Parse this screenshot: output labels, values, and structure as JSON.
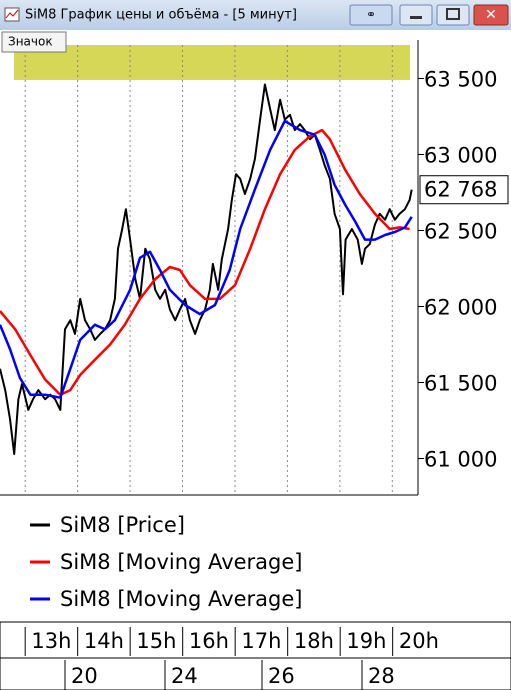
{
  "window": {
    "title": "SiM8 График цены и объёма - [5 минут]",
    "tooltip": "Значок"
  },
  "chart_data": {
    "type": "line",
    "xlim": [
      -0.48,
      7.49
    ],
    "xgrid": [
      0,
      1,
      2,
      3,
      4,
      5,
      6,
      7
    ],
    "ylim": [
      60760,
      63720
    ],
    "yticks": [
      {
        "value": 61000,
        "label": "61 000"
      },
      {
        "value": 61500,
        "label": "61 500"
      },
      {
        "value": 62000,
        "label": "62 000"
      },
      {
        "value": 62500,
        "label": "62 500"
      },
      {
        "value": 63000,
        "label": "63 000"
      },
      {
        "value": 63500,
        "label": "63 500"
      }
    ],
    "last_price": {
      "value": 62768,
      "label": "62 768"
    },
    "highlight": {
      "from": 63490,
      "to": 63720,
      "color": "#cfcf3a"
    },
    "series": [
      {
        "name": "SiM8 [Price]",
        "color": "#000000",
        "x": [
          -0.48,
          -0.38,
          -0.29,
          -0.21,
          -0.13,
          -0.06,
          0.06,
          0.15,
          0.25,
          0.38,
          0.48,
          0.57,
          0.67,
          0.76,
          0.86,
          0.95,
          1.05,
          1.14,
          1.24,
          1.33,
          1.43,
          1.52,
          1.62,
          1.71,
          1.77,
          1.85,
          1.92,
          2.0,
          2.1,
          2.19,
          2.29,
          2.38,
          2.48,
          2.57,
          2.67,
          2.76,
          2.86,
          2.95,
          3.05,
          3.14,
          3.24,
          3.33,
          3.43,
          3.52,
          3.58,
          3.68,
          3.75,
          3.87,
          3.94,
          4.02,
          4.1,
          4.19,
          4.29,
          4.38,
          4.48,
          4.57,
          4.67,
          4.76,
          4.86,
          4.95,
          5.05,
          5.14,
          5.24,
          5.33,
          5.43,
          5.52,
          5.62,
          5.71,
          5.81,
          5.9,
          6.0,
          6.06,
          6.11,
          6.23,
          6.34,
          6.42,
          6.48,
          6.57,
          6.67,
          6.76,
          6.86,
          6.95,
          7.05,
          7.14,
          7.24,
          7.33,
          7.37
        ],
        "values": [
          61590,
          61450,
          61260,
          61030,
          61390,
          61490,
          61320,
          61390,
          61450,
          61390,
          61420,
          61390,
          61320,
          61850,
          61910,
          61820,
          62050,
          61910,
          61850,
          61780,
          61820,
          61850,
          61910,
          62050,
          62380,
          62510,
          62640,
          62440,
          62180,
          62050,
          62380,
          62310,
          62110,
          62050,
          62110,
          61980,
          61910,
          61980,
          62050,
          61910,
          61820,
          61910,
          61980,
          62110,
          62280,
          62110,
          62310,
          62510,
          62700,
          62870,
          62840,
          62740,
          62840,
          62970,
          63230,
          63460,
          63300,
          63160,
          63360,
          63230,
          63260,
          63160,
          63200,
          63160,
          63100,
          63130,
          63030,
          62930,
          62840,
          62610,
          62510,
          62080,
          62440,
          62510,
          62440,
          62280,
          62380,
          62410,
          62540,
          62610,
          62570,
          62640,
          62570,
          62610,
          62640,
          62700,
          62768
        ]
      },
      {
        "name": "SiM8 [Moving Average]",
        "color": "#ff0000",
        "x": [
          -0.48,
          -0.19,
          0.1,
          0.38,
          0.67,
          0.86,
          1.05,
          1.33,
          1.62,
          1.9,
          2.19,
          2.48,
          2.76,
          2.95,
          3.14,
          3.43,
          3.71,
          4.0,
          4.29,
          4.57,
          4.86,
          5.14,
          5.43,
          5.66,
          5.81,
          6.1,
          6.38,
          6.67,
          6.95,
          7.14,
          7.33
        ],
        "values": [
          61970,
          61850,
          61680,
          61520,
          61420,
          61450,
          61550,
          61650,
          61750,
          61880,
          62050,
          62180,
          62260,
          62240,
          62140,
          62050,
          62050,
          62140,
          62380,
          62640,
          62870,
          63030,
          63120,
          63160,
          63100,
          62900,
          62740,
          62610,
          62510,
          62520,
          62510
        ]
      },
      {
        "name": "SiM8 [Moving Average]",
        "color": "#0000ff",
        "x": [
          -0.48,
          -0.29,
          -0.1,
          0.1,
          0.38,
          0.67,
          0.86,
          1.05,
          1.33,
          1.52,
          1.71,
          2.0,
          2.19,
          2.38,
          2.57,
          2.76,
          3.05,
          3.33,
          3.62,
          3.9,
          4.1,
          4.38,
          4.67,
          4.95,
          5.24,
          5.52,
          5.71,
          5.9,
          6.1,
          6.29,
          6.48,
          6.67,
          6.86,
          7.05,
          7.24,
          7.37
        ],
        "values": [
          61880,
          61720,
          61530,
          61420,
          61420,
          61400,
          61590,
          61780,
          61880,
          61850,
          61910,
          62110,
          62320,
          62360,
          62240,
          62110,
          62010,
          61950,
          62010,
          62240,
          62510,
          62770,
          63030,
          63220,
          63160,
          63130,
          63000,
          62800,
          62670,
          62560,
          62440,
          62440,
          62470,
          62490,
          62520,
          62590
        ]
      }
    ]
  },
  "time_axis": {
    "hours": [
      "13h",
      "14h",
      "15h",
      "16h",
      "17h",
      "18h",
      "19h",
      "20h"
    ],
    "dates": [
      "20",
      "24",
      "26",
      "28"
    ]
  }
}
